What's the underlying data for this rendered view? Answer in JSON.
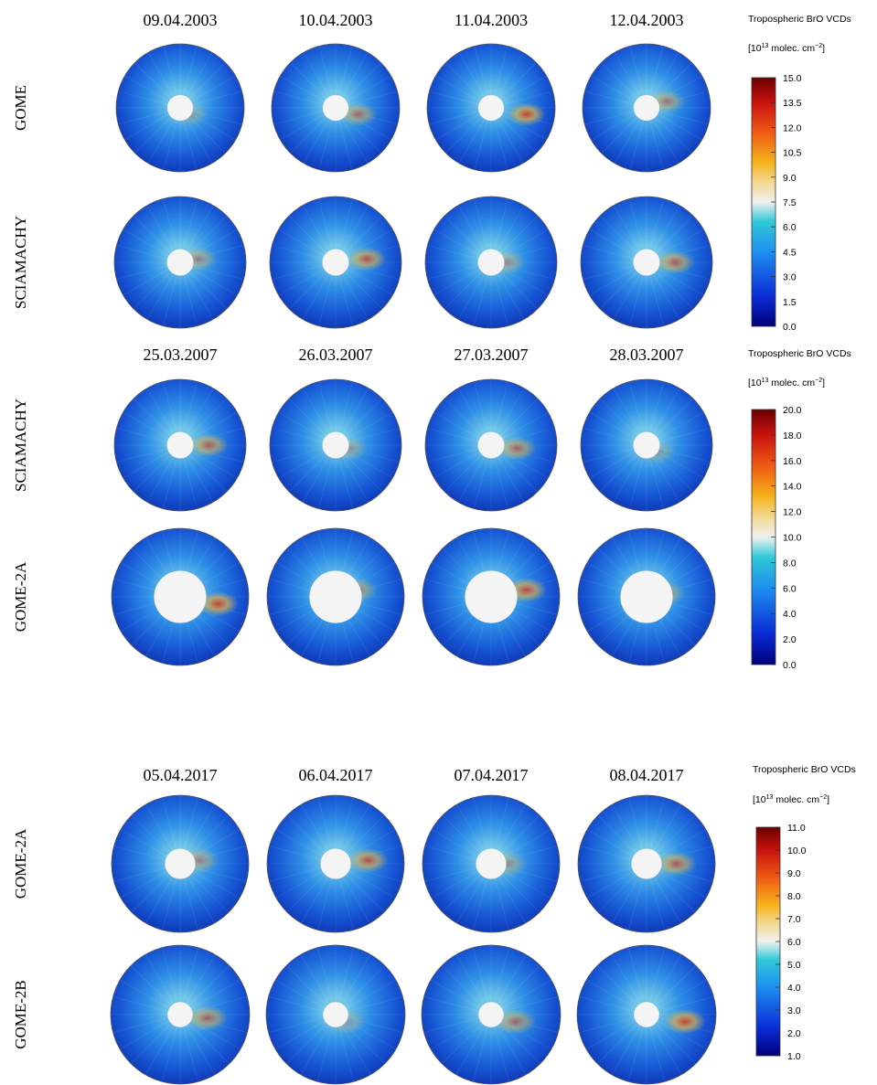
{
  "panels": [
    {
      "dates": [
        "09.04.2003",
        "10.04.2003",
        "11.04.2003",
        "12.04.2003"
      ],
      "rows": [
        "GOME",
        "SCIAMACHY"
      ],
      "colorbar": {
        "title": "Tropospheric BrO VCDs",
        "unit": {
          "open": "[10",
          "exp": "13",
          "rest": " molec. cm",
          "exp2": "−2",
          "close": "]"
        },
        "ticks": [
          {
            "value": 0,
            "label": "0.0"
          },
          {
            "value": 1.5,
            "label": "1.5"
          },
          {
            "value": 3,
            "label": "3.0"
          },
          {
            "value": 4.5,
            "label": "4.5"
          },
          {
            "value": 6,
            "label": "6.0"
          },
          {
            "value": 7.5,
            "label": "7.5"
          },
          {
            "value": 9,
            "label": "9.0"
          },
          {
            "value": 10.5,
            "label": "10.5"
          },
          {
            "value": 12,
            "label": "12.0"
          },
          {
            "value": 13.5,
            "label": "13.5"
          },
          {
            "value": 15,
            "label": "15.0"
          }
        ]
      }
    },
    {
      "dates": [
        "25.03.2007",
        "26.03.2007",
        "27.03.2007",
        "28.03.2007"
      ],
      "rows": [
        "SCIAMACHY",
        "GOME-2A"
      ],
      "colorbar": {
        "title": "Tropospheric BrO VCDs",
        "unit": {
          "open": "[10",
          "exp": "13",
          "rest": " molec. cm",
          "exp2": "−2",
          "close": "]"
        },
        "ticks": [
          {
            "value": 0,
            "label": "0.0"
          },
          {
            "value": 2,
            "label": "2.0"
          },
          {
            "value": 4,
            "label": "4.0"
          },
          {
            "value": 6,
            "label": "6.0"
          },
          {
            "value": 8,
            "label": "8.0"
          },
          {
            "value": 10,
            "label": "10.0"
          },
          {
            "value": 12,
            "label": "12.0"
          },
          {
            "value": 14,
            "label": "14.0"
          },
          {
            "value": 16,
            "label": "16.0"
          },
          {
            "value": 18,
            "label": "18.0"
          },
          {
            "value": 20,
            "label": "20.0"
          }
        ]
      }
    },
    {
      "dates": [
        "05.04.2017",
        "06.04.2017",
        "07.04.2017",
        "08.04.2017"
      ],
      "rows": [
        "GOME-2A",
        "GOME-2B"
      ],
      "colorbar": {
        "title": "Tropospheric BrO VCDs",
        "unit": {
          "open": "[10",
          "exp": "13",
          "rest": " molec. cm",
          "exp2": "−2",
          "close": "]"
        },
        "ticks": [
          {
            "value": 1,
            "label": "1.0"
          },
          {
            "value": 2,
            "label": "2.0"
          },
          {
            "value": 3,
            "label": "3.0"
          },
          {
            "value": 4,
            "label": "4.0"
          },
          {
            "value": 5,
            "label": "5.0"
          },
          {
            "value": 6,
            "label": "6.0"
          },
          {
            "value": 7,
            "label": "7.0"
          },
          {
            "value": 8,
            "label": "8.0"
          },
          {
            "value": 9,
            "label": "9.0"
          },
          {
            "value": 10,
            "label": "10.0"
          },
          {
            "value": 11,
            "label": "11.0"
          }
        ]
      }
    }
  ]
}
